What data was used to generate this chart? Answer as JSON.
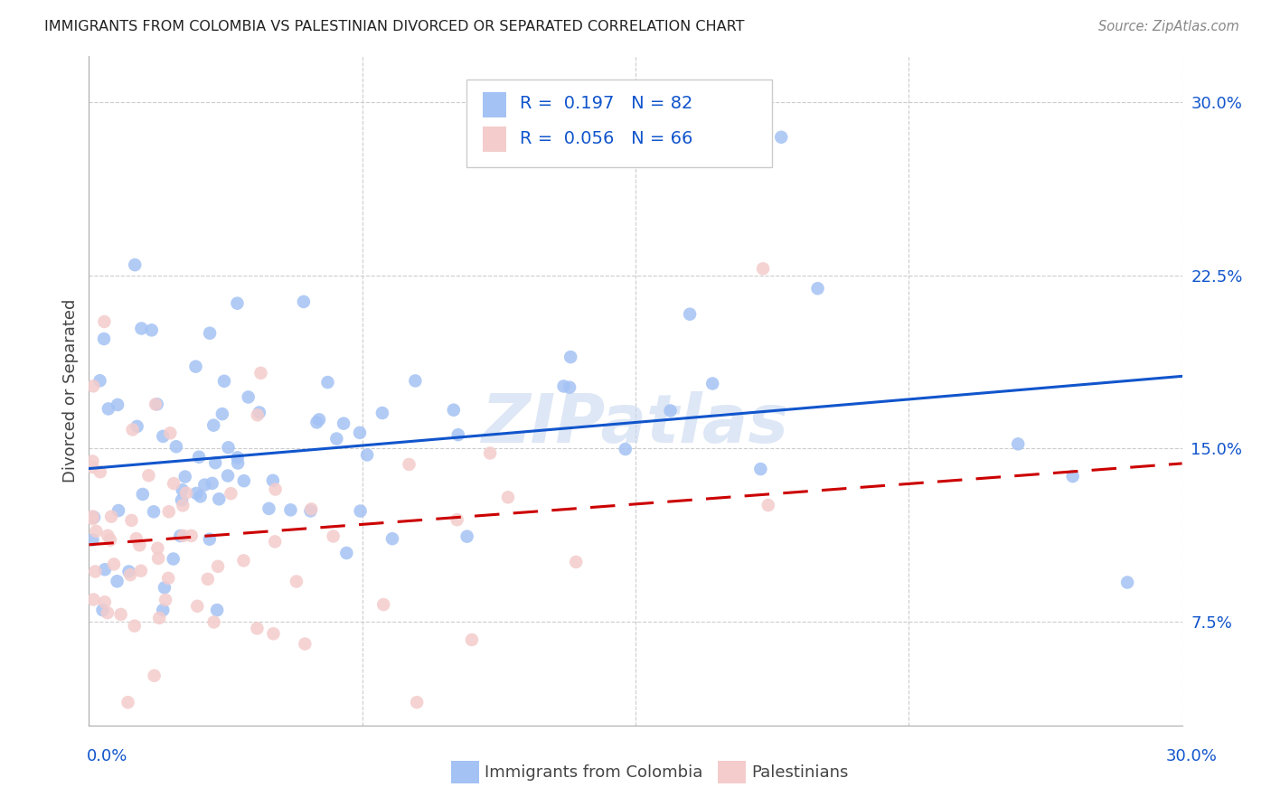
{
  "title": "IMMIGRANTS FROM COLOMBIA VS PALESTINIAN DIVORCED OR SEPARATED CORRELATION CHART",
  "source": "Source: ZipAtlas.com",
  "ylabel": "Divorced or Separated",
  "xlim": [
    0.0,
    0.3
  ],
  "ylim": [
    0.03,
    0.32
  ],
  "yticks": [
    0.075,
    0.15,
    0.225,
    0.3
  ],
  "ytick_labels": [
    "7.5%",
    "15.0%",
    "22.5%",
    "30.0%"
  ],
  "xticks": [
    0.0,
    0.075,
    0.15,
    0.225,
    0.3
  ],
  "blue_color": "#a4c2f4",
  "pink_color": "#f4cccc",
  "blue_line_color": "#1155cc",
  "pink_line_color": "#cc0000",
  "background_color": "#ffffff",
  "watermark": "ZIPatlas",
  "blue_r": 0.197,
  "blue_n": 82,
  "pink_r": 0.056,
  "pink_n": 66,
  "legend_text_color": "#1155cc",
  "legend_label_color": "#333333",
  "blue_intercept": 0.133,
  "blue_slope": 0.1,
  "pink_intercept": 0.117,
  "pink_slope": 0.04
}
